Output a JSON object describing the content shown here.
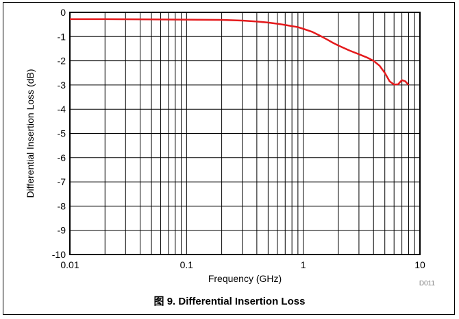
{
  "figure": {
    "caption": "图 9. Differential Insertion Loss",
    "id_label": "D011"
  },
  "chart_data": {
    "type": "line",
    "title": "",
    "xlabel": "Frequency (GHz)",
    "ylabel": "Differential Insertion Loss (dB)",
    "xscale": "log",
    "xlim": [
      0.01,
      10
    ],
    "ylim": [
      -10,
      0
    ],
    "x_ticks": [
      {
        "value": 0.01,
        "label": "0.01"
      },
      {
        "value": 0.1,
        "label": "0.1"
      },
      {
        "value": 1,
        "label": "1"
      },
      {
        "value": 10,
        "label": "10"
      }
    ],
    "y_ticks": [
      {
        "value": 0,
        "label": "0"
      },
      {
        "value": -1,
        "label": "-1"
      },
      {
        "value": -2,
        "label": "-2"
      },
      {
        "value": -3,
        "label": "-3"
      },
      {
        "value": -4,
        "label": "-4"
      },
      {
        "value": -5,
        "label": "-5"
      },
      {
        "value": -6,
        "label": "-6"
      },
      {
        "value": -7,
        "label": "-7"
      },
      {
        "value": -8,
        "label": "-8"
      },
      {
        "value": -9,
        "label": "-9"
      },
      {
        "value": -10,
        "label": "-10"
      }
    ],
    "grid": true,
    "series": [
      {
        "color": "#e41a1c",
        "x": [
          0.01,
          0.02,
          0.05,
          0.1,
          0.2,
          0.3,
          0.4,
          0.5,
          0.6,
          0.7,
          0.8,
          0.9,
          1.0,
          1.2,
          1.4,
          1.6,
          1.8,
          2.0,
          2.5,
          3.0,
          3.5,
          4.0,
          4.5,
          5.0,
          5.5,
          6.0,
          6.5,
          7.0,
          7.5,
          8.0
        ],
        "y": [
          -0.28,
          -0.28,
          -0.29,
          -0.3,
          -0.31,
          -0.34,
          -0.38,
          -0.42,
          -0.47,
          -0.52,
          -0.57,
          -0.61,
          -0.68,
          -0.81,
          -0.97,
          -1.12,
          -1.26,
          -1.37,
          -1.58,
          -1.73,
          -1.86,
          -2.0,
          -2.2,
          -2.5,
          -2.85,
          -2.98,
          -2.97,
          -2.8,
          -2.85,
          -3.0
        ]
      }
    ]
  }
}
